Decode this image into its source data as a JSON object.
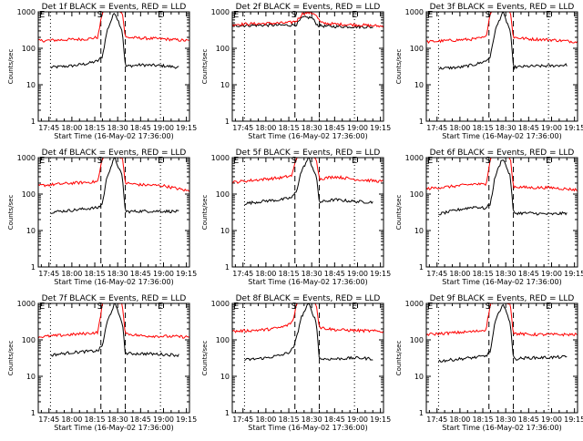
{
  "x_tick_labels": [
    "17:45",
    "18:00",
    "18:15",
    "18:30",
    "18:45",
    "19:00",
    "19:15"
  ],
  "x_axis_label": "Start Time (16-May-02 17:36:00)",
  "y_axis_label": "Counts/sec",
  "y_tick_labels": [
    "1",
    "10",
    "100",
    "1000"
  ],
  "marker_start": "S",
  "marker_end": "E",
  "colors": {
    "events": "#000000",
    "lld": "#ff0000"
  },
  "chart_data": [
    {
      "type": "line",
      "title": "Det 1f BLACK = Events, RED = LLD",
      "x": [
        "17:38",
        "19:17"
      ],
      "xticks": [
        "17:45",
        "18:00",
        "18:15",
        "18:30",
        "18:45",
        "19:00",
        "19:15"
      ],
      "ylim": [
        1,
        1000
      ],
      "yscale": "log",
      "vlines_dotted": [
        "17:46",
        "18:58"
      ],
      "vlines_dashed": [
        "18:19",
        "18:35"
      ],
      "series": [
        {
          "legend": "Events",
          "color": "#000000",
          "x": [
            "17:46",
            "18:00",
            "18:10",
            "18:17",
            "18:20",
            "18:23",
            "18:28",
            "18:33",
            "18:35",
            "18:45",
            "19:00",
            "19:10"
          ],
          "values": [
            30,
            33,
            38,
            45,
            60,
            300,
            1000,
            300,
            32,
            35,
            33,
            30
          ]
        },
        {
          "legend": "LLD",
          "color": "#ff0000",
          "x": [
            "17:38",
            "18:00",
            "18:10",
            "18:17",
            "18:20",
            "18:23",
            "18:28",
            "18:33",
            "18:35",
            "18:45",
            "19:00",
            "19:17"
          ],
          "values": [
            160,
            175,
            180,
            200,
            1000,
            1200,
            1200,
            1000,
            200,
            190,
            180,
            160
          ]
        }
      ]
    },
    {
      "type": "line",
      "title": "Det 2f BLACK = Events, RED = LLD",
      "x": [
        "17:38",
        "19:17"
      ],
      "xticks": [
        "17:45",
        "18:00",
        "18:15",
        "18:30",
        "18:45",
        "19:00",
        "19:15"
      ],
      "ylim": [
        1,
        1000
      ],
      "yscale": "log",
      "vlines_dotted": [
        "17:46",
        "18:58"
      ],
      "vlines_dashed": [
        "18:19",
        "18:35"
      ],
      "series": [
        {
          "legend": "Events",
          "color": "#000000",
          "x": [
            "17:38",
            "18:00",
            "18:15",
            "18:20",
            "18:24",
            "18:30",
            "18:34",
            "18:40",
            "19:00",
            "19:10"
          ],
          "values": [
            420,
            430,
            430,
            450,
            700,
            700,
            420,
            400,
            390,
            380
          ]
        },
        {
          "legend": "LLD",
          "color": "#ff0000",
          "x": [
            "17:38",
            "18:00",
            "18:15",
            "18:20",
            "18:24",
            "18:28",
            "18:32",
            "18:36",
            "18:45",
            "19:00",
            "19:17"
          ],
          "values": [
            450,
            480,
            500,
            560,
            900,
            950,
            900,
            500,
            460,
            440,
            400
          ]
        }
      ]
    },
    {
      "type": "line",
      "title": "Det 3f BLACK = Events, RED = LLD",
      "x": [
        "17:38",
        "19:17"
      ],
      "xticks": [
        "17:45",
        "18:00",
        "18:15",
        "18:30",
        "18:45",
        "19:00",
        "19:15"
      ],
      "ylim": [
        1,
        1000
      ],
      "yscale": "log",
      "vlines_dotted": [
        "17:46",
        "18:58"
      ],
      "vlines_dashed": [
        "18:19",
        "18:35"
      ],
      "series": [
        {
          "legend": "Events",
          "color": "#000000",
          "x": [
            "17:46",
            "18:00",
            "18:10",
            "18:17",
            "18:20",
            "18:23",
            "18:28",
            "18:33",
            "18:35",
            "18:45",
            "19:00",
            "19:10"
          ],
          "values": [
            28,
            30,
            36,
            45,
            60,
            300,
            1000,
            300,
            30,
            32,
            33,
            35
          ]
        },
        {
          "legend": "LLD",
          "color": "#ff0000",
          "x": [
            "17:38",
            "18:00",
            "18:10",
            "18:17",
            "18:20",
            "18:23",
            "18:28",
            "18:33",
            "18:35",
            "18:45",
            "19:00",
            "19:17"
          ],
          "values": [
            150,
            170,
            180,
            200,
            1000,
            1200,
            1200,
            1000,
            200,
            180,
            170,
            150
          ]
        }
      ]
    },
    {
      "type": "line",
      "title": "Det 4f BLACK = Events, RED = LLD",
      "x": [
        "17:38",
        "19:17"
      ],
      "xticks": [
        "17:45",
        "18:00",
        "18:15",
        "18:30",
        "18:45",
        "19:00",
        "19:15"
      ],
      "ylim": [
        1,
        1000
      ],
      "yscale": "log",
      "vlines_dotted": [
        "17:46",
        "18:58"
      ],
      "vlines_dashed": [
        "18:19",
        "18:35"
      ],
      "series": [
        {
          "legend": "Events",
          "color": "#000000",
          "x": [
            "17:46",
            "18:00",
            "18:10",
            "18:17",
            "18:20",
            "18:23",
            "18:28",
            "18:33",
            "18:35",
            "18:45",
            "19:00",
            "19:10"
          ],
          "values": [
            32,
            36,
            40,
            42,
            55,
            300,
            1000,
            300,
            33,
            34,
            34,
            33
          ]
        },
        {
          "legend": "LLD",
          "color": "#ff0000",
          "x": [
            "17:38",
            "18:00",
            "18:10",
            "18:17",
            "18:20",
            "18:23",
            "18:28",
            "18:33",
            "18:35",
            "18:45",
            "19:00",
            "19:17"
          ],
          "values": [
            170,
            200,
            210,
            220,
            1000,
            1200,
            1200,
            1000,
            200,
            180,
            170,
            120
          ]
        }
      ]
    },
    {
      "type": "line",
      "title": "Det 5f BLACK = Events, RED = LLD",
      "x": [
        "17:38",
        "19:17"
      ],
      "xticks": [
        "17:45",
        "18:00",
        "18:15",
        "18:30",
        "18:45",
        "19:00",
        "19:15"
      ],
      "ylim": [
        1,
        1000
      ],
      "yscale": "log",
      "vlines_dotted": [
        "17:46",
        "18:58"
      ],
      "vlines_dashed": [
        "18:19",
        "18:35"
      ],
      "series": [
        {
          "legend": "Events",
          "color": "#000000",
          "x": [
            "17:46",
            "18:00",
            "18:10",
            "18:17",
            "18:20",
            "18:23",
            "18:28",
            "18:33",
            "18:35",
            "18:45",
            "19:00",
            "19:10"
          ],
          "values": [
            55,
            65,
            70,
            80,
            120,
            400,
            1000,
            300,
            60,
            70,
            62,
            60
          ]
        },
        {
          "legend": "LLD",
          "color": "#ff0000",
          "x": [
            "17:38",
            "18:00",
            "18:10",
            "18:17",
            "18:20",
            "18:23",
            "18:28",
            "18:33",
            "18:35",
            "18:45",
            "19:00",
            "19:17"
          ],
          "values": [
            210,
            260,
            280,
            320,
            1000,
            1200,
            1200,
            1000,
            260,
            300,
            250,
            220
          ]
        }
      ]
    },
    {
      "type": "line",
      "title": "Det 6f BLACK = Events, RED = LLD",
      "x": [
        "17:38",
        "19:17"
      ],
      "xticks": [
        "17:45",
        "18:00",
        "18:15",
        "18:30",
        "18:45",
        "19:00",
        "19:15"
      ],
      "ylim": [
        1,
        1000
      ],
      "yscale": "log",
      "vlines_dotted": [
        "17:46",
        "18:58"
      ],
      "vlines_dashed": [
        "18:19",
        "18:35"
      ],
      "series": [
        {
          "legend": "Events",
          "color": "#000000",
          "x": [
            "17:46",
            "18:00",
            "18:10",
            "18:17",
            "18:20",
            "18:23",
            "18:28",
            "18:33",
            "18:35",
            "18:45",
            "19:00",
            "19:10"
          ],
          "values": [
            28,
            38,
            45,
            40,
            55,
            300,
            1000,
            300,
            30,
            30,
            28,
            30
          ]
        },
        {
          "legend": "LLD",
          "color": "#ff0000",
          "x": [
            "17:38",
            "18:00",
            "18:10",
            "18:17",
            "18:20",
            "18:23",
            "18:28",
            "18:33",
            "18:35",
            "18:45",
            "19:00",
            "19:17"
          ],
          "values": [
            140,
            170,
            190,
            180,
            1000,
            1200,
            1200,
            1000,
            160,
            150,
            150,
            130
          ]
        }
      ]
    },
    {
      "type": "line",
      "title": "Det 7f BLACK = Events, RED = LLD",
      "x": [
        "17:38",
        "19:17"
      ],
      "xticks": [
        "17:45",
        "18:00",
        "18:15",
        "18:30",
        "18:45",
        "19:00",
        "19:15"
      ],
      "ylim": [
        1,
        1000
      ],
      "yscale": "log",
      "vlines_dotted": [
        "17:46",
        "18:58"
      ],
      "vlines_dashed": [
        "18:19",
        "18:35"
      ],
      "series": [
        {
          "legend": "Events",
          "color": "#000000",
          "x": [
            "17:46",
            "18:00",
            "18:10",
            "18:17",
            "18:20",
            "18:23",
            "18:28",
            "18:33",
            "18:35",
            "18:45",
            "19:00",
            "19:10"
          ],
          "values": [
            38,
            45,
            48,
            50,
            70,
            300,
            1000,
            300,
            42,
            42,
            40,
            38
          ]
        },
        {
          "legend": "LLD",
          "color": "#ff0000",
          "x": [
            "17:38",
            "18:00",
            "18:10",
            "18:17",
            "18:20",
            "18:23",
            "18:28",
            "18:33",
            "18:35",
            "18:45",
            "19:00",
            "19:17"
          ],
          "values": [
            120,
            140,
            150,
            160,
            1000,
            1200,
            1200,
            1000,
            150,
            130,
            125,
            120
          ]
        }
      ]
    },
    {
      "type": "line",
      "title": "Det 8f BLACK = Events, RED = LLD",
      "x": [
        "17:38",
        "19:17"
      ],
      "xticks": [
        "17:45",
        "18:00",
        "18:15",
        "18:30",
        "18:45",
        "19:00",
        "19:15"
      ],
      "ylim": [
        1,
        1000
      ],
      "yscale": "log",
      "vlines_dotted": [
        "17:46",
        "18:58"
      ],
      "vlines_dashed": [
        "18:19",
        "18:35"
      ],
      "series": [
        {
          "legend": "Events",
          "color": "#000000",
          "x": [
            "17:46",
            "18:00",
            "18:10",
            "18:15",
            "18:18",
            "18:20",
            "18:23",
            "18:28",
            "18:33",
            "18:35",
            "18:45",
            "19:00",
            "19:10"
          ],
          "values": [
            28,
            32,
            38,
            45,
            60,
            110,
            400,
            1000,
            300,
            30,
            30,
            32,
            30
          ]
        },
        {
          "legend": "LLD",
          "color": "#ff0000",
          "x": [
            "17:38",
            "18:00",
            "18:10",
            "18:15",
            "18:18",
            "18:20",
            "18:23",
            "18:28",
            "18:33",
            "18:35",
            "18:45",
            "19:00",
            "19:17"
          ],
          "values": [
            170,
            190,
            220,
            260,
            350,
            1000,
            1200,
            1200,
            1000,
            220,
            190,
            180,
            170
          ]
        }
      ]
    },
    {
      "type": "line",
      "title": "Det 9f BLACK = Events, RED = LLD",
      "x": [
        "17:38",
        "19:17"
      ],
      "xticks": [
        "17:45",
        "18:00",
        "18:15",
        "18:30",
        "18:45",
        "19:00",
        "19:15"
      ],
      "ylim": [
        1,
        1000
      ],
      "yscale": "log",
      "vlines_dotted": [
        "17:46",
        "18:58"
      ],
      "vlines_dashed": [
        "18:19",
        "18:35"
      ],
      "series": [
        {
          "legend": "Events",
          "color": "#000000",
          "x": [
            "17:46",
            "18:00",
            "18:10",
            "18:17",
            "18:20",
            "18:23",
            "18:28",
            "18:33",
            "18:35",
            "18:45",
            "19:00",
            "19:10"
          ],
          "values": [
            26,
            30,
            33,
            36,
            50,
            300,
            1000,
            300,
            30,
            32,
            33,
            34
          ]
        },
        {
          "legend": "LLD",
          "color": "#ff0000",
          "x": [
            "17:38",
            "18:00",
            "18:10",
            "18:17",
            "18:20",
            "18:23",
            "18:28",
            "18:33",
            "18:35",
            "18:45",
            "19:00",
            "19:17"
          ],
          "values": [
            140,
            160,
            170,
            190,
            1000,
            1200,
            1200,
            1000,
            150,
            140,
            140,
            140
          ]
        }
      ]
    }
  ]
}
